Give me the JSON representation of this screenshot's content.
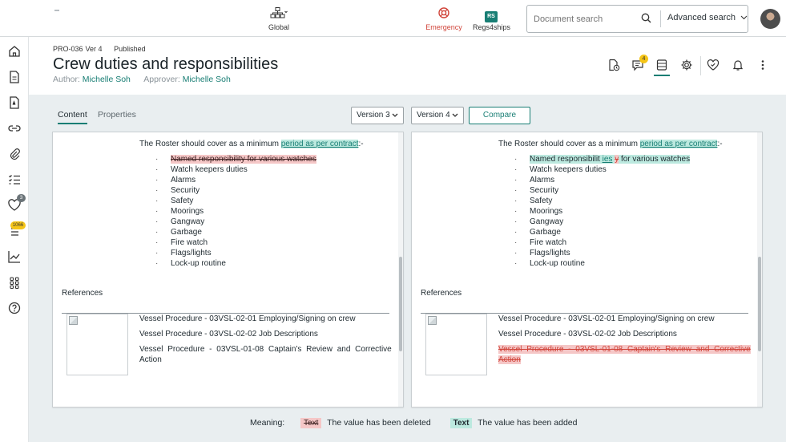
{
  "header": {
    "scope_label": "Global",
    "emergency_label": "Emergency",
    "regs_label": "Regs4ships",
    "regs_badge": "RS",
    "search_placeholder": "Document search",
    "advanced_search_label": "Advanced search"
  },
  "rail": {
    "badges": {
      "favorites_count": "3",
      "tasks_count": "1066"
    }
  },
  "document": {
    "code": "PRO-036",
    "version": "Ver 4",
    "status": "Published",
    "title": "Crew duties and responsibilities",
    "author_label": "Author:",
    "author_name": "Michelle Soh",
    "approver_label": "Approver:",
    "approver_name": "Michelle Soh",
    "comments_badge": "4"
  },
  "tabs": {
    "content": "Content",
    "properties": "Properties"
  },
  "compare": {
    "left_version": "Version 3",
    "right_version": "Version 4",
    "compare_label": "Compare"
  },
  "left_panel": {
    "roster_prefix": "The Roster should cover as a minimum",
    "roster_link": "period as per contract",
    "roster_suffix": ":-",
    "deleted_item": "Named responsibility for various watches",
    "items": [
      "Watch keepers duties",
      "Alarms",
      "Security",
      "Safety",
      "Moorings",
      "Gangway",
      "Garbage",
      "Fire watch",
      "Flags/lights",
      "Lock-up routine"
    ],
    "references_heading": "References",
    "refs": [
      "Vessel Procedure - 03VSL-02-01 Employing/Signing on crew",
      "Vessel Procedure - 03VSL-02-02 Job Descriptions",
      "Vessel Procedure - 03VSL-01-08 Captain's Review and Corrective",
      "Action"
    ]
  },
  "right_panel": {
    "roster_prefix": "The Roster should cover as a minimum",
    "roster_link": "period as per contract",
    "roster_suffix": ":-",
    "changed_item_a": "Named responsibilit",
    "changed_item_added": "ies",
    "changed_item_deleted": "y",
    "changed_item_b": "for various watches",
    "items": [
      "Watch keepers duties",
      "Alarms",
      "Security",
      "Safety",
      "Moorings",
      "Gangway",
      "Garbage",
      "Fire watch",
      "Flags/lights",
      "Lock-up routine"
    ],
    "references_heading": "References",
    "refs": [
      "Vessel Procedure - 03VSL-02-01 Employing/Signing on crew",
      "Vessel Procedure - 03VSL-02-02 Job Descriptions",
      "Vessel Procedure - 03VSL-01-08 Captain's Review and Corrective",
      "Action"
    ]
  },
  "legend": {
    "meaning_label": "Meaning:",
    "deleted_sample": "Text",
    "deleted_desc": "The value has been deleted",
    "added_sample": "Text",
    "added_desc": "The value has been added"
  },
  "colors": {
    "accent": "#187e74",
    "deleted_bg": "#f5c7c7",
    "added_bg": "#bce9df",
    "emergency": "#d1453b",
    "badge_yellow": "#f5c518"
  }
}
